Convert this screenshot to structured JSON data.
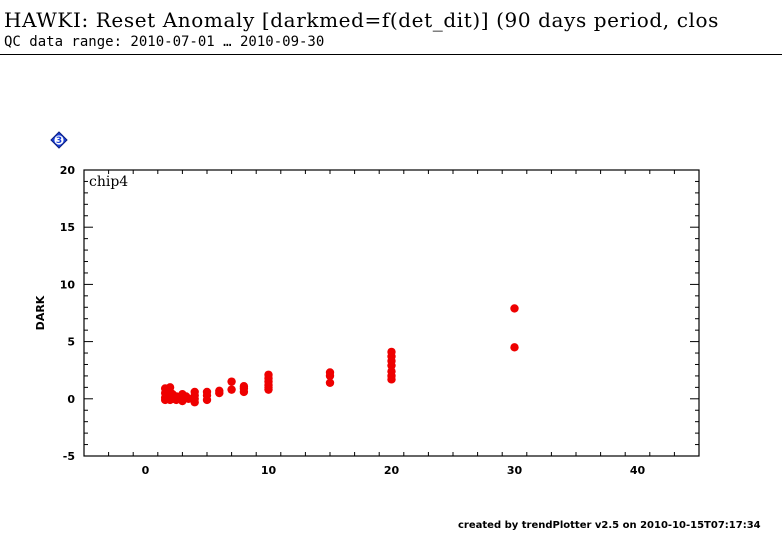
{
  "header": {
    "title": "HAWKI: Reset Anomaly [darkmed=f(det_dit)] (90 days period, clos",
    "subtitle": "QC data range: 2010-07-01 … 2010-09-30"
  },
  "badge": {
    "label": "3",
    "icon": "diamond-badge-icon",
    "color": "#1a3fd6"
  },
  "footer": {
    "text": "created by trendPlotter v2.5 on 2010-10-15T07:17:34"
  },
  "chart_data": {
    "type": "scatter",
    "panel_label": "chip4",
    "xlabel": "",
    "ylabel": "DARK",
    "xlim": [
      -5,
      45
    ],
    "ylim": [
      -5,
      20
    ],
    "xticks": [
      0,
      10,
      20,
      30,
      40
    ],
    "yticks": [
      -5,
      0,
      5,
      10,
      15,
      20
    ],
    "grid": false,
    "marker_color": "#ee0000",
    "series": [
      {
        "points": [
          [
            1.6,
            0.9
          ],
          [
            1.6,
            0.5
          ],
          [
            1.6,
            0.1
          ],
          [
            1.6,
            -0.1
          ],
          [
            1.8,
            0.7
          ],
          [
            1.8,
            0.3
          ],
          [
            1.8,
            0.0
          ],
          [
            2.0,
            1.0
          ],
          [
            2.0,
            0.6
          ],
          [
            2.0,
            0.2
          ],
          [
            2.0,
            -0.1
          ],
          [
            2.2,
            0.4
          ],
          [
            2.2,
            0.0
          ],
          [
            2.5,
            0.2
          ],
          [
            2.5,
            -0.1
          ],
          [
            2.8,
            0.1
          ],
          [
            3.0,
            0.4
          ],
          [
            3.0,
            0.0
          ],
          [
            3.0,
            -0.2
          ],
          [
            3.3,
            0.2
          ],
          [
            3.5,
            0.0
          ],
          [
            4.0,
            0.6
          ],
          [
            4.0,
            0.3
          ],
          [
            4.0,
            0.0
          ],
          [
            4.0,
            -0.3
          ],
          [
            5.0,
            0.6
          ],
          [
            5.0,
            0.3
          ],
          [
            5.0,
            -0.1
          ],
          [
            6.0,
            0.7
          ],
          [
            6.0,
            0.5
          ],
          [
            7.0,
            1.5
          ],
          [
            7.0,
            0.8
          ],
          [
            8.0,
            1.1
          ],
          [
            8.0,
            0.9
          ],
          [
            8.0,
            0.6
          ],
          [
            10.0,
            2.1
          ],
          [
            10.0,
            1.8
          ],
          [
            10.0,
            1.5
          ],
          [
            10.0,
            1.2
          ],
          [
            10.0,
            1.0
          ],
          [
            10.0,
            0.8
          ],
          [
            15.0,
            2.3
          ],
          [
            15.0,
            2.0
          ],
          [
            15.0,
            1.4
          ],
          [
            20.0,
            4.1
          ],
          [
            20.0,
            3.7
          ],
          [
            20.0,
            3.3
          ],
          [
            20.0,
            2.9
          ],
          [
            20.0,
            2.4
          ],
          [
            20.0,
            2.0
          ],
          [
            20.0,
            1.7
          ],
          [
            30.0,
            7.9
          ],
          [
            30.0,
            4.5
          ]
        ]
      }
    ]
  }
}
